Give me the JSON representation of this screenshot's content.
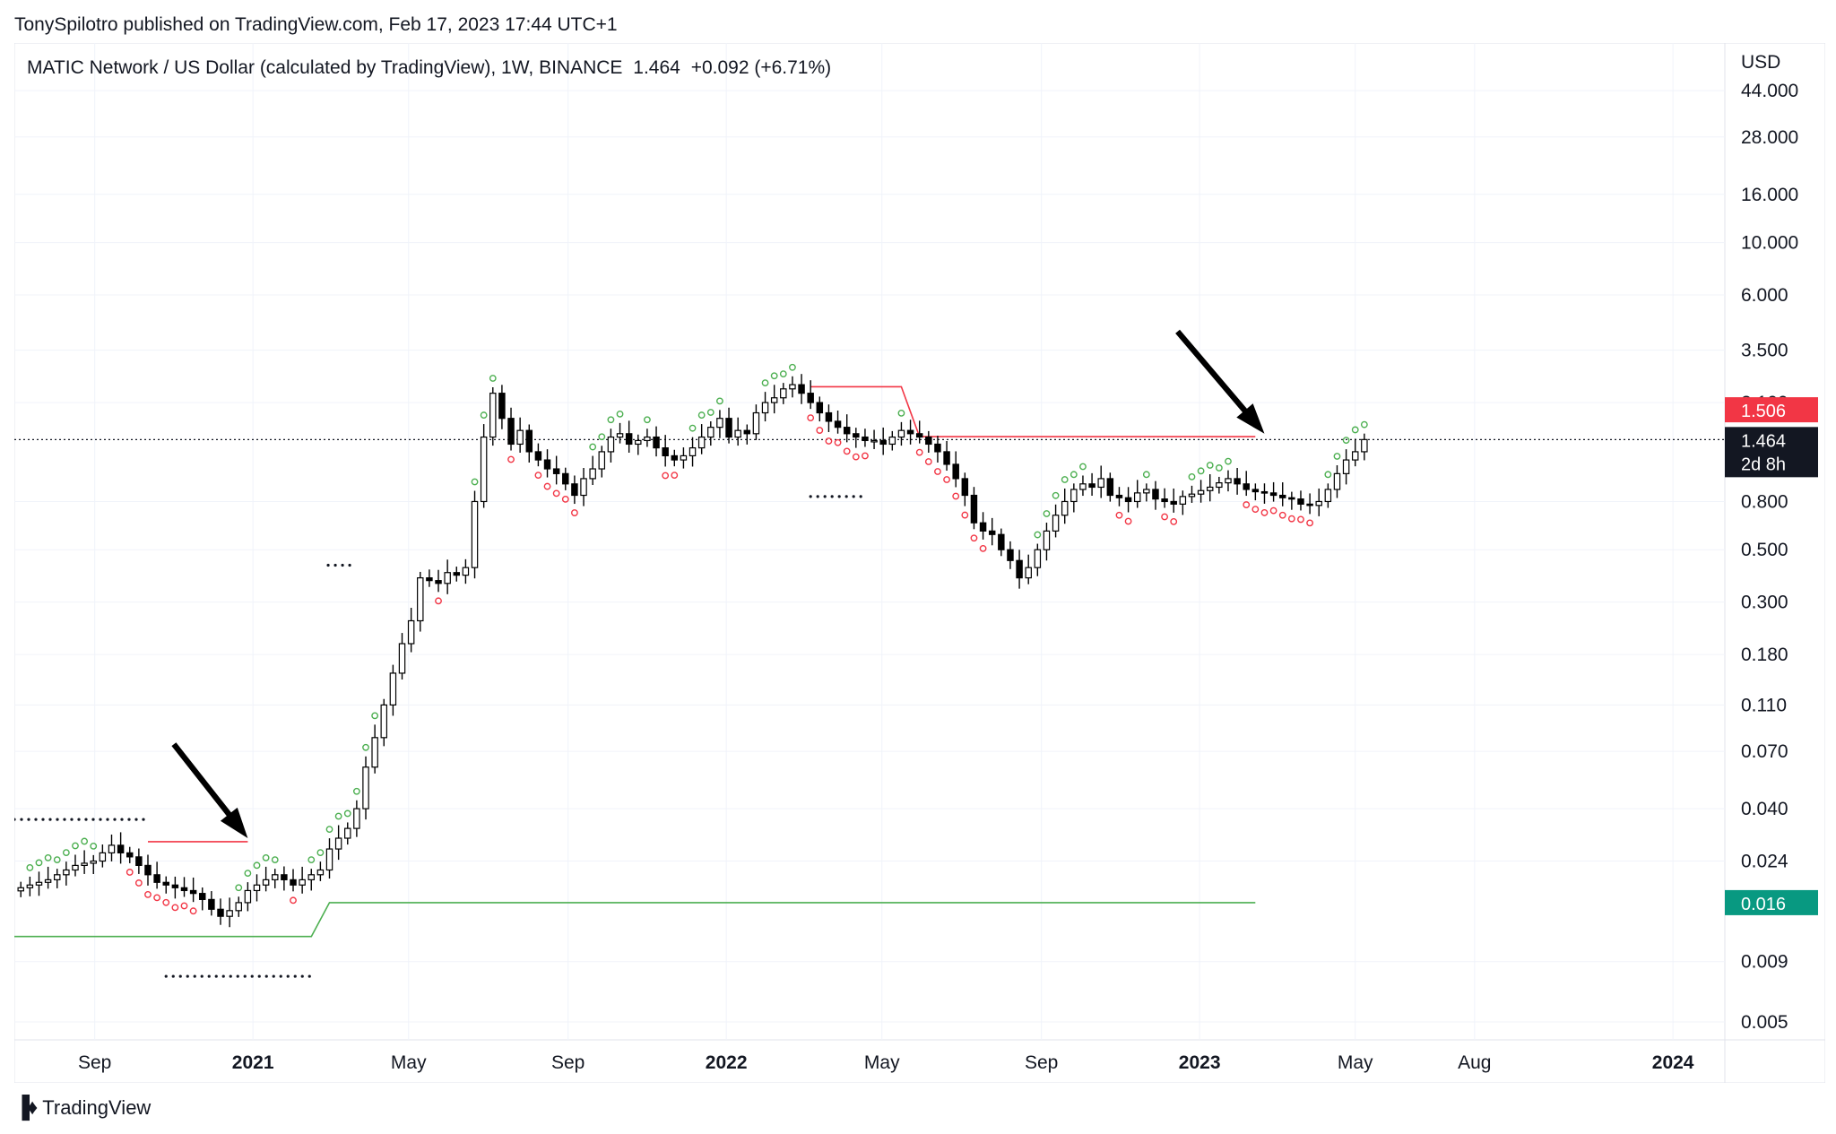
{
  "publisher": "TonySpilotro published on TradingView.com, Feb 17, 2023 17:44 UTC+1",
  "header": {
    "symbol": "MATIC Network / US Dollar (calculated by TradingView), 1W, BINANCE",
    "last": "1.464",
    "change": "+0.092 (+6.71%)"
  },
  "footer": {
    "logo_icon": "tradingview-logo-icon",
    "brand": "TradingView"
  },
  "colors": {
    "up": "#ffffff",
    "down": "#000000",
    "resistance": "#f23645",
    "support": "#4caf50",
    "green_dot": "#4caf50",
    "red_dot": "#f23645"
  },
  "chart_data": {
    "type": "candlestick",
    "timeframe": "1W",
    "scale": "log",
    "currency_label": "USD",
    "x_ticks": [
      {
        "label": "Sep",
        "bold": false,
        "date": "2020-09-01"
      },
      {
        "label": "2021",
        "bold": true,
        "date": "2021-01-01"
      },
      {
        "label": "May",
        "bold": false,
        "date": "2021-05-01"
      },
      {
        "label": "Sep",
        "bold": false,
        "date": "2021-09-01"
      },
      {
        "label": "2022",
        "bold": true,
        "date": "2022-01-01"
      },
      {
        "label": "May",
        "bold": false,
        "date": "2022-05-01"
      },
      {
        "label": "Sep",
        "bold": false,
        "date": "2022-09-01"
      },
      {
        "label": "2023",
        "bold": true,
        "date": "2023-01-01"
      },
      {
        "label": "May",
        "bold": false,
        "date": "2023-05-01"
      },
      {
        "label": "Aug",
        "bold": false,
        "date": "2023-08-01"
      },
      {
        "label": "2024",
        "bold": true,
        "date": "2024-01-01"
      }
    ],
    "y_ticks": [
      "44.000",
      "28.000",
      "16.000",
      "10.000",
      "6.000",
      "3.500",
      "2.100",
      "0.800",
      "0.500",
      "0.300",
      "0.180",
      "0.110",
      "0.070",
      "0.040",
      "0.024",
      "0.009",
      "0.005"
    ],
    "price_tags": [
      {
        "label": "1.506",
        "value": 1.506,
        "bg": "#f23645"
      },
      {
        "label": "1.464",
        "sub": "2d 8h",
        "value": 1.464,
        "bg": "#131722"
      },
      {
        "label": "0.016",
        "value": 0.016,
        "bg": "#089981"
      }
    ],
    "weekly_close": [
      [
        0.0185,
        0.019,
        0.0195,
        0.02,
        0.021,
        0.022,
        0.023,
        0.0235,
        0.024,
        0.026,
        0.028,
        0.026
      ],
      [
        0.025,
        0.023,
        0.021,
        0.0195,
        0.019,
        0.0185,
        0.018,
        0.0175,
        0.0165,
        0.015,
        0.014,
        0.0148,
        0.016,
        0.018,
        0.019
      ],
      [
        0.02,
        0.021,
        0.02,
        0.019,
        0.02,
        0.021,
        0.022,
        0.027,
        0.03,
        0.033,
        0.04,
        0.06,
        0.08,
        0.11,
        0.15,
        0.2
      ],
      [
        0.25,
        0.38,
        0.37,
        0.36,
        0.4,
        0.39,
        0.42,
        0.8,
        1.5,
        2.3,
        1.8,
        1.4,
        1.6,
        1.3,
        1.2,
        1.1,
        1.05
      ],
      [
        0.95,
        0.85,
        1.0,
        1.1,
        1.3,
        1.5,
        1.55,
        1.4,
        1.45,
        1.5,
        1.35,
        1.25,
        1.2,
        1.25
      ],
      [
        1.35,
        1.5,
        1.65,
        1.8,
        1.5,
        1.6,
        1.55,
        1.9,
        2.1,
        2.2,
        2.4,
        2.5,
        2.3,
        2.1,
        1.9,
        1.75
      ],
      [
        1.65,
        1.55,
        1.5,
        1.45,
        1.45,
        1.4,
        1.5,
        1.6,
        1.55,
        1.5,
        1.4,
        1.3,
        1.15,
        1.0,
        0.85,
        0.65
      ],
      [
        0.6,
        0.58,
        0.5,
        0.45,
        0.38,
        0.42,
        0.5,
        0.6,
        0.7,
        0.8,
        0.9,
        0.95,
        0.92,
        1.0,
        0.85,
        0.83,
        0.8,
        0.87,
        0.9,
        0.82,
        0.8,
        0.78,
        0.84,
        0.86,
        0.89
      ],
      [
        0.92,
        0.96,
        1.0,
        0.95,
        0.9,
        0.88,
        0.87,
        0.85,
        0.83,
        0.82,
        0.78,
        0.77,
        0.8,
        0.9,
        1.05,
        1.2,
        1.3,
        1.464
      ]
    ],
    "resistance_line": [
      {
        "date": "2020-10-12",
        "value": 0.029
      },
      {
        "date": "2020-12-28",
        "value": 0.029
      },
      {
        "date": "2022-03-07",
        "value": 2.45
      },
      {
        "date": "2022-05-16",
        "value": 2.45
      },
      {
        "date": "2022-05-30",
        "value": 1.506
      },
      {
        "date": "2023-02-13",
        "value": 1.506
      }
    ],
    "support_line": [
      {
        "date": "2020-07-01",
        "value": 0.0115
      },
      {
        "date": "2021-02-15",
        "value": 0.0115
      },
      {
        "date": "2021-03-01",
        "value": 0.016
      },
      {
        "date": "2023-02-13",
        "value": 0.016
      }
    ],
    "arrows": [
      {
        "from_date": "2020-11-01",
        "from_value": 0.075,
        "to_date": "2020-12-28",
        "to_value": 0.03
      },
      {
        "from_date": "2022-12-15",
        "from_value": 4.2,
        "to_date": "2023-02-20",
        "to_value": 1.55
      }
    ]
  }
}
